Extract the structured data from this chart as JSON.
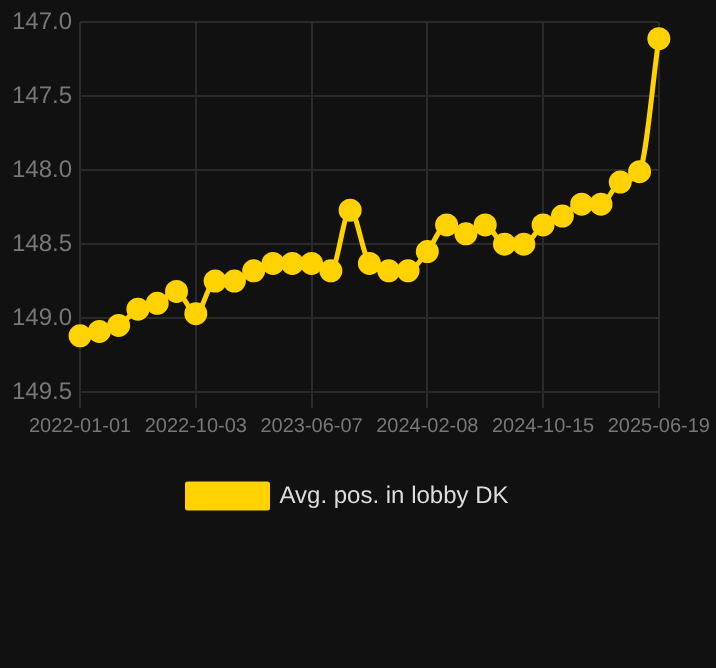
{
  "chart_data": {
    "type": "line",
    "categories": [
      "2022-01-01",
      null,
      null,
      null,
      null,
      null,
      "2022-10-03",
      null,
      null,
      null,
      null,
      null,
      "2023-06-07",
      null,
      null,
      null,
      null,
      null,
      "2024-02-08",
      null,
      null,
      null,
      null,
      null,
      "2024-10-15",
      null,
      null,
      null,
      null,
      null,
      "2025-06-19"
    ],
    "series": [
      {
        "name": "Avg. pos. in lobby DK",
        "color": "#ffd200",
        "values": [
          149.12,
          149.09,
          149.05,
          148.94,
          148.9,
          148.82,
          148.97,
          148.75,
          148.75,
          148.68,
          148.63,
          148.63,
          148.63,
          148.68,
          148.27,
          148.63,
          148.68,
          148.68,
          148.55,
          148.37,
          148.43,
          148.37,
          148.5,
          148.5,
          148.37,
          148.31,
          148.23,
          148.23,
          148.08,
          148.01,
          147.11
        ]
      }
    ],
    "ylim": [
      149.5,
      147.0
    ],
    "yticks": [
      {
        "value": 147,
        "label": "147.0"
      },
      147.5,
      {
        "value": 148,
        "label": "148.0"
      },
      148.5,
      {
        "value": 149,
        "label": "149.0"
      },
      149.5
    ],
    "grid": true,
    "legend": "bottom",
    "marker": "circle",
    "line_style": "solid"
  }
}
